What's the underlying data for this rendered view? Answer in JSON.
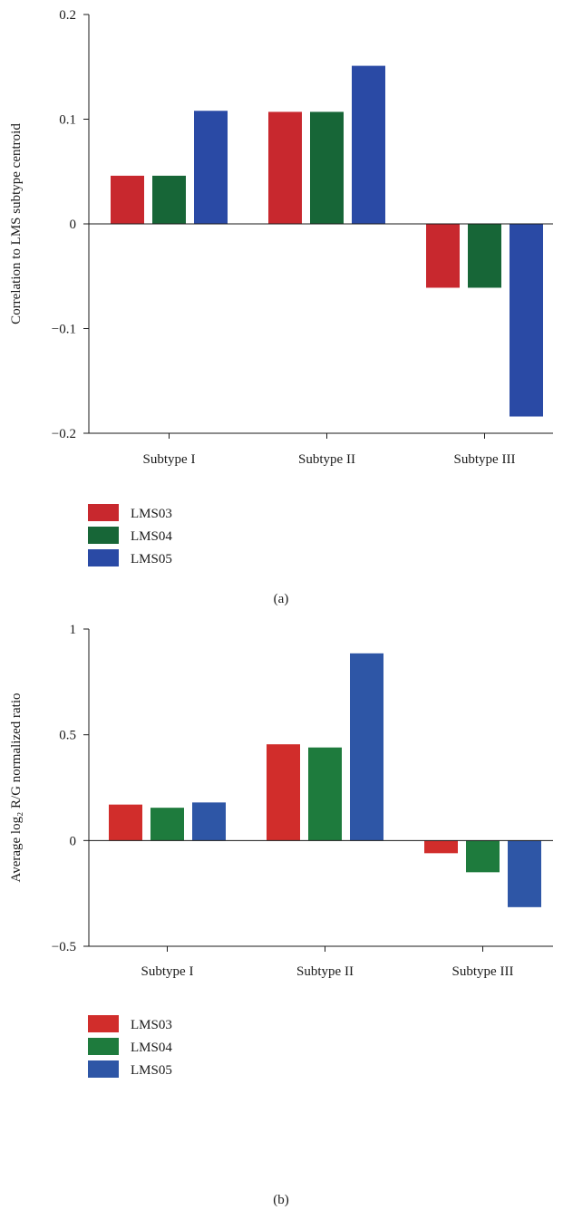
{
  "chart_data": [
    {
      "type": "bar",
      "caption": "(a)",
      "ylabel": "Correlation to LMS subtype centroid",
      "ylim": [
        -0.2,
        0.2
      ],
      "yticks": [
        {
          "value": 0.2,
          "label": "0.2"
        },
        {
          "value": 0.1,
          "label": "0.1"
        },
        {
          "value": 0,
          "label": "0"
        },
        {
          "value": -0.1,
          "label": "−0.1"
        },
        {
          "value": -0.2,
          "label": "−0.2"
        }
      ],
      "categories": [
        "Subtype I",
        "Subtype II",
        "Subtype III"
      ],
      "series": [
        {
          "name": "LMS03",
          "color": "#c8282e",
          "values": [
            0.046,
            0.107,
            -0.061
          ]
        },
        {
          "name": "LMS04",
          "color": "#176637",
          "values": [
            0.046,
            0.107,
            -0.061
          ]
        },
        {
          "name": "LMS05",
          "color": "#2a4aa5",
          "values": [
            0.108,
            0.151,
            -0.184
          ]
        }
      ],
      "legend_position": "bottom-left",
      "grid": false
    },
    {
      "type": "bar",
      "caption": "(b)",
      "ylabel": "Average log₂ R/G normalized ratio",
      "ylim": [
        -0.5,
        1
      ],
      "yticks": [
        {
          "value": 1,
          "label": "1"
        },
        {
          "value": 0.5,
          "label": "0.5"
        },
        {
          "value": 0,
          "label": "0"
        },
        {
          "value": -0.5,
          "label": "−0.5"
        }
      ],
      "categories": [
        "Subtype I",
        "Subtype II",
        "Subtype III"
      ],
      "series": [
        {
          "name": "LMS03",
          "color": "#d12d2b",
          "values": [
            0.17,
            0.455,
            -0.06
          ]
        },
        {
          "name": "LMS04",
          "color": "#1e7b3d",
          "values": [
            0.155,
            0.44,
            -0.15
          ]
        },
        {
          "name": "LMS05",
          "color": "#2e56a6",
          "values": [
            0.18,
            0.885,
            -0.315
          ]
        }
      ],
      "legend_position": "bottom-left",
      "grid": false
    }
  ]
}
